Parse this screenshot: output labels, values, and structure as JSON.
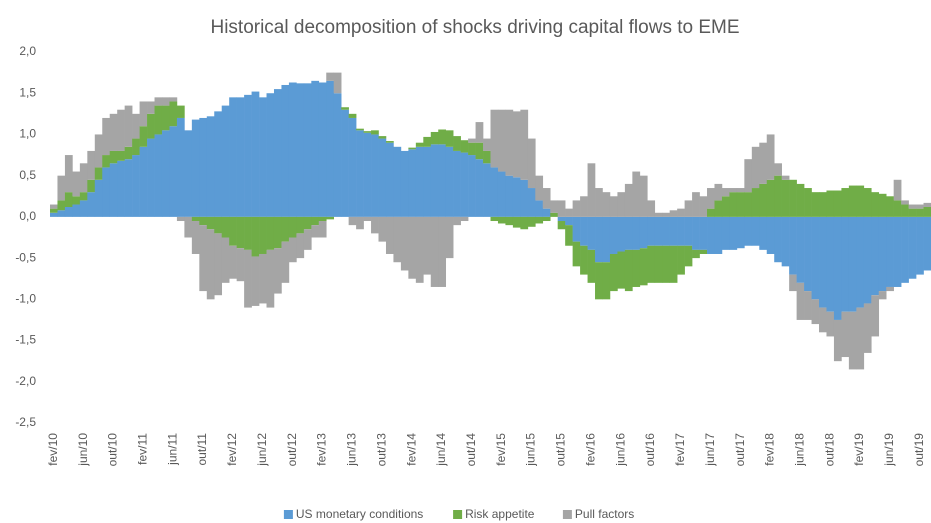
{
  "chart_data": {
    "type": "stacked_bar",
    "title": "Historical decomposition of shocks driving capital flows to EME",
    "categories": [
      "fev/10",
      null,
      null,
      null,
      "jun/10",
      null,
      null,
      null,
      "out/10",
      null,
      null,
      null,
      "fev/11",
      null,
      null,
      null,
      "jun/11",
      null,
      null,
      null,
      "out/11",
      null,
      null,
      null,
      "fev/12",
      null,
      null,
      null,
      "jun/12",
      null,
      null,
      null,
      "out/12",
      null,
      null,
      null,
      "fev/13",
      null,
      null,
      null,
      "jun/13",
      null,
      null,
      null,
      "out/13",
      null,
      null,
      null,
      "fev/14",
      null,
      null,
      null,
      "jun/14",
      null,
      null,
      null,
      "out/14",
      null,
      null,
      null,
      "fev/15",
      null,
      null,
      null,
      "jun/15",
      null,
      null,
      null,
      "out/15",
      null,
      null,
      null,
      "fev/16",
      null,
      null,
      null,
      "jun/16",
      null,
      null,
      null,
      "out/16",
      null,
      null,
      null,
      "fev/17",
      null,
      null,
      null,
      "jun/17",
      null,
      null,
      null,
      "out/17",
      null,
      null,
      null,
      "fev/18",
      null,
      null,
      null,
      "jun/18",
      null,
      null,
      null,
      "out/18",
      null,
      null,
      null,
      "fev/19",
      null,
      null,
      null,
      "jun/19",
      null,
      null,
      null,
      "out/19",
      null
    ],
    "series": [
      {
        "name": "US monetary conditions",
        "color": "#5b9bd5",
        "values": [
          0.05,
          0.08,
          0.12,
          0.15,
          0.2,
          0.3,
          0.45,
          0.6,
          0.65,
          0.68,
          0.7,
          0.75,
          0.85,
          0.95,
          1.0,
          1.05,
          1.1,
          1.2,
          1.05,
          1.18,
          1.2,
          1.22,
          1.28,
          1.35,
          1.45,
          1.45,
          1.48,
          1.52,
          1.45,
          1.5,
          1.55,
          1.6,
          1.63,
          1.62,
          1.62,
          1.65,
          1.63,
          1.65,
          1.5,
          1.3,
          1.2,
          1.05,
          1.02,
          1.0,
          0.95,
          0.9,
          0.85,
          0.8,
          0.82,
          0.85,
          0.85,
          0.88,
          0.88,
          0.85,
          0.8,
          0.78,
          0.75,
          0.7,
          0.65,
          0.6,
          0.55,
          0.5,
          0.48,
          0.45,
          0.35,
          0.2,
          0.1,
          0,
          -0.05,
          -0.1,
          -0.3,
          -0.35,
          -0.4,
          -0.55,
          -0.55,
          -0.45,
          -0.42,
          -0.4,
          -0.4,
          -0.38,
          -0.35,
          -0.35,
          -0.35,
          -0.35,
          -0.35,
          -0.35,
          -0.4,
          -0.4,
          -0.45,
          -0.45,
          -0.4,
          -0.4,
          -0.38,
          -0.35,
          -0.35,
          -0.4,
          -0.45,
          -0.55,
          -0.6,
          -0.7,
          -0.8,
          -0.9,
          -1.0,
          -1.1,
          -1.15,
          -1.25,
          -1.15,
          -1.15,
          -1.1,
          -1.05,
          -0.95,
          -0.9,
          -0.85,
          -0.85,
          -0.8,
          -0.75,
          -0.7,
          -0.65
        ]
      },
      {
        "name": "Risk appetite",
        "color": "#70ad47",
        "values": [
          0.05,
          0.12,
          0.18,
          0.1,
          0.1,
          0.15,
          0.15,
          0.15,
          0.15,
          0.12,
          0.15,
          0.2,
          0.25,
          0.3,
          0.35,
          0.3,
          0.3,
          0.15,
          0,
          -0.05,
          -0.1,
          -0.15,
          -0.2,
          -0.25,
          -0.35,
          -0.38,
          -0.4,
          -0.48,
          -0.45,
          -0.4,
          -0.38,
          -0.3,
          -0.25,
          -0.2,
          -0.15,
          -0.1,
          -0.05,
          -0.03,
          0,
          0.03,
          0.05,
          0.02,
          0.02,
          0.05,
          0.03,
          0.02,
          0,
          0,
          0.02,
          0.05,
          0.12,
          0.15,
          0.18,
          0.2,
          0.18,
          0.15,
          0.15,
          0.2,
          0.15,
          -0.05,
          -0.08,
          -0.1,
          -0.13,
          -0.15,
          -0.12,
          -0.08,
          -0.05,
          0.05,
          -0.1,
          -0.25,
          -0.3,
          -0.35,
          -0.4,
          -0.45,
          -0.45,
          -0.45,
          -0.45,
          -0.5,
          -0.45,
          -0.45,
          -0.45,
          -0.45,
          -0.45,
          -0.45,
          -0.35,
          -0.25,
          -0.1,
          -0.05,
          0.1,
          0.2,
          0.25,
          0.3,
          0.3,
          0.3,
          0.35,
          0.4,
          0.45,
          0.5,
          0.45,
          0.45,
          0.4,
          0.35,
          0.3,
          0.3,
          0.32,
          0.32,
          0.35,
          0.38,
          0.38,
          0.35,
          0.3,
          0.28,
          0.25,
          0.2,
          0.15,
          0.1,
          0.1,
          0.12
        ]
      },
      {
        "name": "Pull factors",
        "color": "#a5a5a5",
        "values": [
          0.05,
          0.3,
          0.45,
          0.3,
          0.35,
          0.35,
          0.4,
          0.45,
          0.45,
          0.5,
          0.5,
          0.3,
          0.3,
          0.15,
          0.1,
          0.1,
          0.05,
          -0.05,
          -0.25,
          -0.4,
          -0.8,
          -0.85,
          -0.75,
          -0.55,
          -0.4,
          -0.4,
          -0.7,
          -0.6,
          -0.6,
          -0.7,
          -0.55,
          -0.5,
          -0.3,
          -0.3,
          -0.25,
          -0.15,
          -0.2,
          0.1,
          0.25,
          0,
          -0.1,
          -0.15,
          -0.05,
          -0.2,
          -0.3,
          -0.45,
          -0.55,
          -0.65,
          -0.75,
          -0.8,
          -0.7,
          -0.85,
          -0.85,
          -0.5,
          -0.1,
          -0.05,
          0.05,
          0.25,
          0.15,
          0.7,
          0.75,
          0.8,
          0.8,
          0.85,
          0.6,
          0.3,
          0.25,
          0.15,
          0.2,
          0.1,
          0.2,
          0.25,
          0.65,
          0.35,
          0.3,
          0.25,
          0.3,
          0.4,
          0.55,
          0.5,
          0.2,
          0.05,
          0.05,
          0.08,
          0.1,
          0.2,
          0.3,
          0.25,
          0.25,
          0.2,
          0.1,
          0.05,
          0.05,
          0.4,
          0.5,
          0.5,
          0.55,
          0.15,
          0.05,
          -0.2,
          -0.45,
          -0.35,
          -0.3,
          -0.3,
          -0.3,
          -0.5,
          -0.55,
          -0.7,
          -0.75,
          -0.6,
          -0.5,
          -0.1,
          -0.05,
          0.25,
          0.05,
          0.05,
          0.05,
          0.05
        ]
      }
    ],
    "ylim": [
      -2.5,
      2
    ],
    "yticks": [
      {
        "value": 2,
        "label": "2,0"
      },
      {
        "value": 1.5,
        "label": "1,5"
      },
      {
        "value": 1,
        "label": "1,0"
      },
      {
        "value": 0.5,
        "label": "0,5"
      },
      {
        "value": 0,
        "label": "0,0"
      },
      {
        "value": -0.5,
        "label": "-0,5"
      },
      {
        "value": -1,
        "label": "-1,0"
      },
      {
        "value": -1.5,
        "label": "-1,5"
      },
      {
        "value": -2,
        "label": "-2,0"
      },
      {
        "value": -2.5,
        "label": "-2,5"
      }
    ]
  }
}
